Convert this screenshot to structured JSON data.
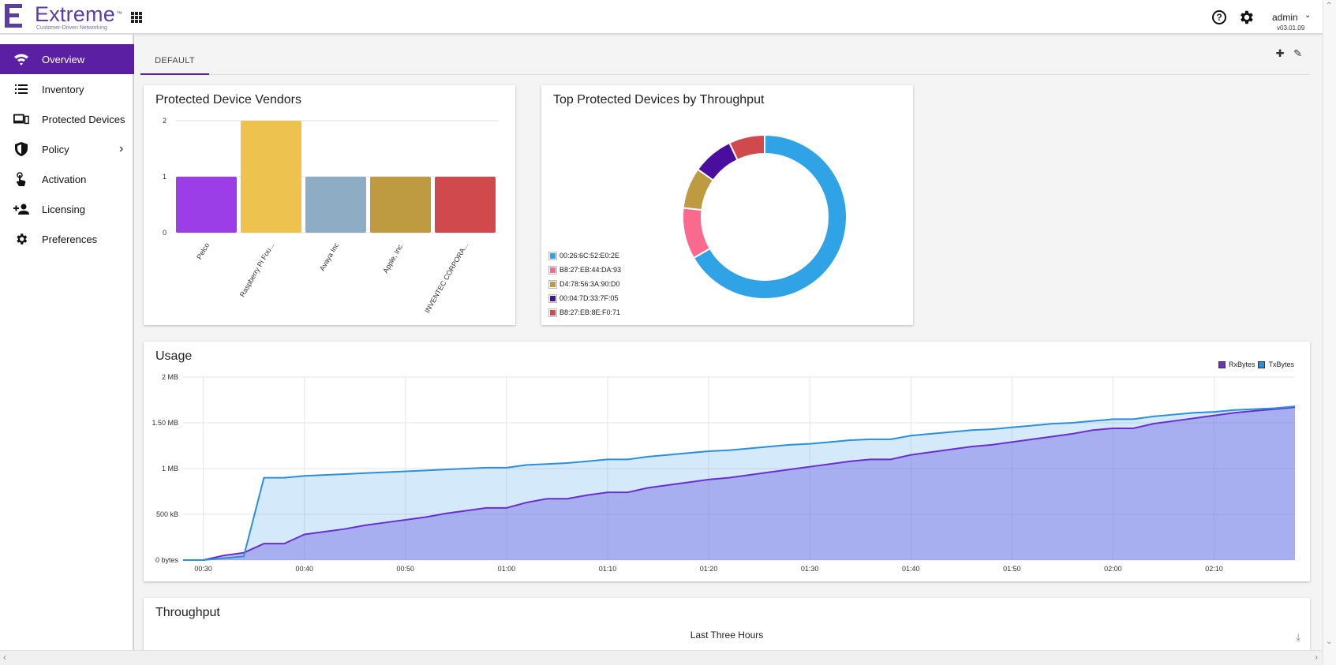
{
  "header": {
    "brand": "Extreme",
    "brand_mark": "™",
    "tagline": "Customer-Driven Networking",
    "user": "admin",
    "version": "v03.01.09"
  },
  "sidebar": {
    "items": [
      {
        "label": "Overview",
        "icon": "wifi-icon",
        "active": true
      },
      {
        "label": "Inventory",
        "icon": "list-icon"
      },
      {
        "label": "Protected Devices",
        "icon": "devices-icon"
      },
      {
        "label": "Policy",
        "icon": "shield-icon",
        "has_submenu": true
      },
      {
        "label": "Activation",
        "icon": "touch-icon"
      },
      {
        "label": "Licensing",
        "icon": "add-person-icon"
      },
      {
        "label": "Preferences",
        "icon": "gear-icon"
      }
    ]
  },
  "tabs": [
    {
      "label": "DEFAULT",
      "active": true
    }
  ],
  "cards": {
    "vendors": {
      "title": "Protected Device Vendors"
    },
    "top_devices": {
      "title": "Top Protected Devices by Throughput"
    },
    "usage": {
      "title": "Usage"
    },
    "throughput": {
      "title": "Throughput",
      "subtitle": "Last Three Hours"
    }
  },
  "colors": {
    "accent": "#5a1fa3",
    "brand": "#5c3e9e"
  },
  "chart_data": [
    {
      "type": "bar",
      "title": "Protected Device Vendors",
      "categories": [
        "Pelco",
        "Raspberry Pi Fou...",
        "Avaya Inc",
        "Apple, Inc.",
        "INVENTEC CORPORA..."
      ],
      "values": [
        1,
        2,
        1,
        1,
        1
      ],
      "colors": [
        "#9b3ee8",
        "#eec24e",
        "#8eacc4",
        "#be9a40",
        "#d04a4d"
      ],
      "yticks": [
        "0",
        "1",
        "2"
      ],
      "ylim": [
        0,
        2
      ],
      "grid": true
    },
    {
      "type": "pie",
      "title": "Top Protected Devices by Throughput",
      "donut": true,
      "labels": [
        "00:26:6C:52:E0:2E",
        "B8:27:EB:44:DA:93",
        "D4:78:56:3A:90:D0",
        "00:04:7D:33:7F:05",
        "B8:27:EB:8E:F0:71"
      ],
      "values": [
        66,
        10,
        8,
        8,
        7
      ],
      "colors": [
        "#30a3e6",
        "#f96a8e",
        "#be9a40",
        "#4a0d9e",
        "#d04a4d"
      ],
      "legend": "bottom-left"
    },
    {
      "type": "area",
      "title": "Usage",
      "yticks": [
        "0 bytes",
        "500 kB",
        "1 MB",
        "1.50 MB",
        "2 MB"
      ],
      "ylim": [
        0,
        2
      ],
      "xticks": [
        "00:30",
        "00:40",
        "00:50",
        "01:00",
        "01:10",
        "01:20",
        "01:30",
        "01:40",
        "01:50",
        "02:00",
        "02:10"
      ],
      "x": [
        "00:28",
        "00:30",
        "00:32",
        "00:34",
        "00:36",
        "00:38",
        "00:40",
        "00:42",
        "00:44",
        "00:46",
        "00:48",
        "00:50",
        "00:52",
        "00:54",
        "00:56",
        "00:58",
        "01:00",
        "01:02",
        "01:04",
        "01:06",
        "01:08",
        "01:10",
        "01:12",
        "01:14",
        "01:16",
        "01:18",
        "01:20",
        "01:22",
        "01:24",
        "01:26",
        "01:28",
        "01:30",
        "01:32",
        "01:34",
        "01:36",
        "01:38",
        "01:40",
        "01:42",
        "01:44",
        "01:46",
        "01:48",
        "01:50",
        "01:52",
        "01:54",
        "01:56",
        "01:58",
        "02:00",
        "02:02",
        "02:04",
        "02:06",
        "02:08",
        "02:10",
        "02:12",
        "02:14",
        "02:16",
        "02:18"
      ],
      "series": [
        {
          "name": "RxBytes",
          "color": "#6a2fcf",
          "values": [
            0.0,
            0.0,
            0.05,
            0.08,
            0.18,
            0.18,
            0.28,
            0.31,
            0.34,
            0.38,
            0.41,
            0.44,
            0.47,
            0.51,
            0.54,
            0.57,
            0.57,
            0.63,
            0.67,
            0.67,
            0.71,
            0.74,
            0.74,
            0.79,
            0.82,
            0.85,
            0.88,
            0.9,
            0.93,
            0.96,
            0.99,
            1.02,
            1.05,
            1.08,
            1.1,
            1.1,
            1.15,
            1.18,
            1.21,
            1.24,
            1.26,
            1.29,
            1.32,
            1.35,
            1.38,
            1.42,
            1.44,
            1.44,
            1.49,
            1.52,
            1.55,
            1.58,
            1.61,
            1.63,
            1.65,
            1.67
          ]
        },
        {
          "name": "TxBytes",
          "color": "#2b8fdb",
          "values": [
            0.0,
            0.0,
            0.02,
            0.04,
            0.9,
            0.9,
            0.92,
            0.93,
            0.94,
            0.95,
            0.96,
            0.97,
            0.98,
            0.99,
            1.0,
            1.01,
            1.01,
            1.04,
            1.05,
            1.06,
            1.08,
            1.1,
            1.1,
            1.13,
            1.15,
            1.17,
            1.19,
            1.2,
            1.22,
            1.24,
            1.26,
            1.27,
            1.29,
            1.31,
            1.32,
            1.32,
            1.36,
            1.38,
            1.4,
            1.42,
            1.43,
            1.45,
            1.47,
            1.49,
            1.5,
            1.52,
            1.54,
            1.54,
            1.57,
            1.59,
            1.61,
            1.62,
            1.64,
            1.65,
            1.66,
            1.68
          ]
        }
      ],
      "legend": "top-right",
      "grid": true
    }
  ]
}
